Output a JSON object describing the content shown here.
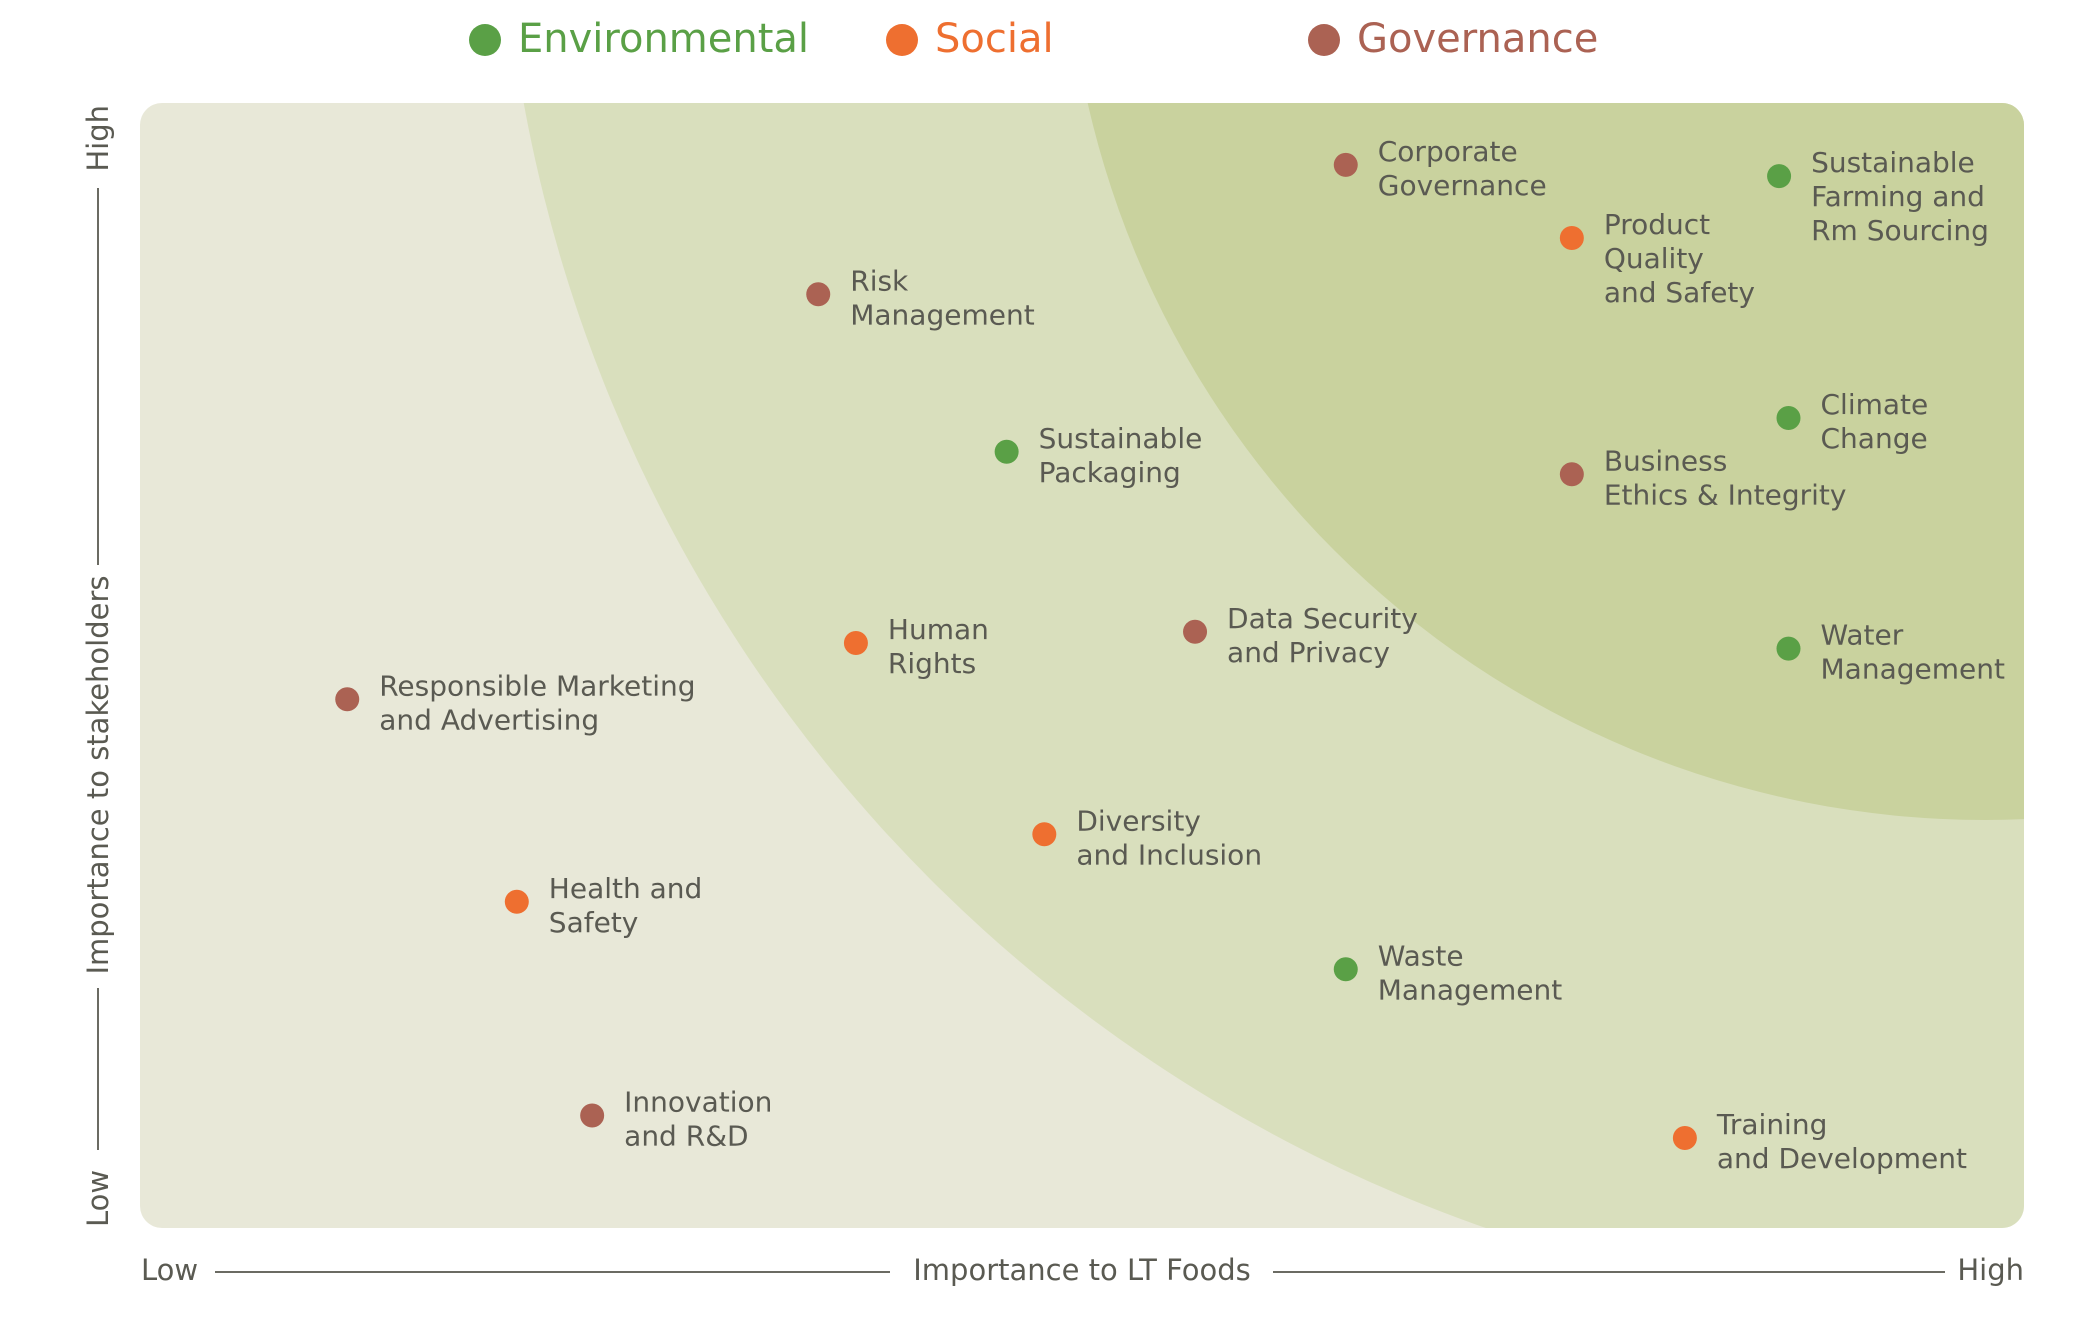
{
  "chart_data": {
    "type": "scatter",
    "title": "",
    "xlabel": "Importance to LT Foods",
    "ylabel": "Importance to stakeholders",
    "x_low_label": "Low",
    "x_high_label": "High",
    "y_low_label": "Low",
    "y_high_label": "High",
    "xlim": [
      0,
      10
    ],
    "ylim": [
      0,
      10
    ],
    "grid": false,
    "legend_position": "top",
    "zone_colors": {
      "low": "#e8e8d8",
      "medium": "#d9dfbd",
      "high": "#c9d29e"
    },
    "series": [
      {
        "name": "Environmental",
        "color": "#5aa046"
      },
      {
        "name": "Social",
        "color": "#ee6f30"
      },
      {
        "name": "Governance",
        "color": "#ab6253"
      }
    ],
    "points": [
      {
        "label": [
          "Corporate",
          "Governance"
        ],
        "category": "Governance",
        "x": 6.4,
        "y": 9.45
      },
      {
        "label": [
          "Sustainable",
          "Farming and",
          "Rm Sourcing"
        ],
        "category": "Environmental",
        "x": 8.7,
        "y": 9.35
      },
      {
        "label": [
          "Product",
          "Quality",
          "and Safety"
        ],
        "category": "Social",
        "x": 7.6,
        "y": 8.8
      },
      {
        "label": [
          "Risk",
          "Management"
        ],
        "category": "Governance",
        "x": 3.6,
        "y": 8.3
      },
      {
        "label": [
          "Climate",
          "Change"
        ],
        "category": "Environmental",
        "x": 8.75,
        "y": 7.2
      },
      {
        "label": [
          "Sustainable",
          "Packaging"
        ],
        "category": "Environmental",
        "x": 4.6,
        "y": 6.9
      },
      {
        "label": [
          "Business",
          "Ethics & Integrity"
        ],
        "category": "Governance",
        "x": 7.6,
        "y": 6.7
      },
      {
        "label": [
          "Human",
          "Rights"
        ],
        "category": "Social",
        "x": 3.8,
        "y": 5.2
      },
      {
        "label": [
          "Data Security",
          "and Privacy"
        ],
        "category": "Governance",
        "x": 5.6,
        "y": 5.3
      },
      {
        "label": [
          "Water",
          "Management"
        ],
        "category": "Environmental",
        "x": 8.75,
        "y": 5.15
      },
      {
        "label": [
          "Responsible Marketing",
          "and Advertising"
        ],
        "category": "Governance",
        "x": 1.1,
        "y": 4.7
      },
      {
        "label": [
          "Diversity",
          "and Inclusion"
        ],
        "category": "Social",
        "x": 4.8,
        "y": 3.5
      },
      {
        "label": [
          "Health and",
          "Safety"
        ],
        "category": "Social",
        "x": 2.0,
        "y": 2.9
      },
      {
        "label": [
          "Waste",
          "Management"
        ],
        "category": "Environmental",
        "x": 6.4,
        "y": 2.3
      },
      {
        "label": [
          "Innovation",
          "and R&D"
        ],
        "category": "Governance",
        "x": 2.4,
        "y": 1.0
      },
      {
        "label": [
          "Training",
          "and Development"
        ],
        "category": "Social",
        "x": 8.2,
        "y": 0.8
      }
    ]
  }
}
